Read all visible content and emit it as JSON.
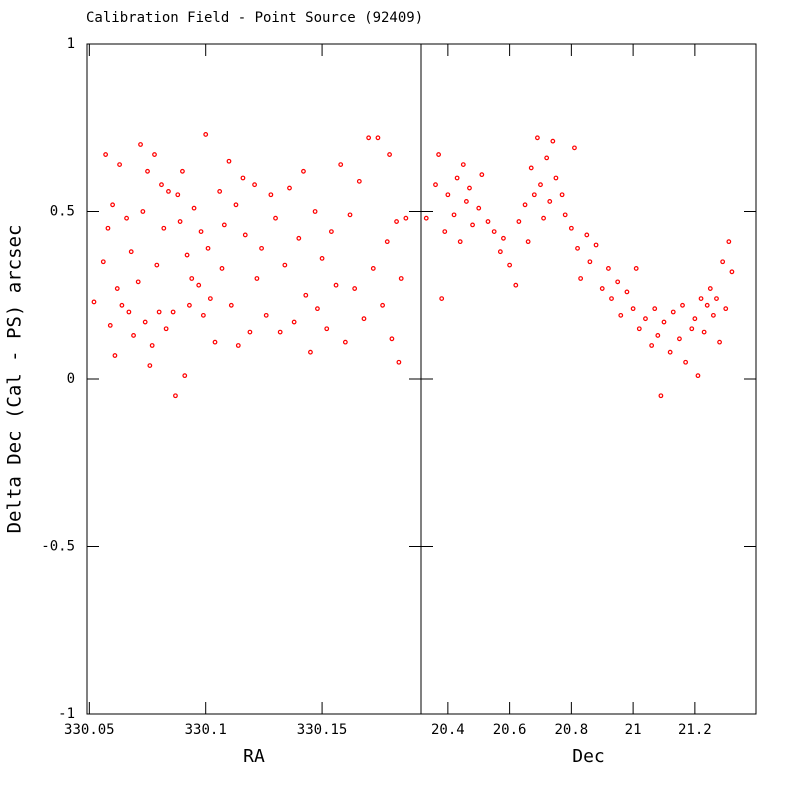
{
  "chart_data": [
    {
      "type": "scatter",
      "title": "Calibration Field - Point Source (92409)",
      "ylabel": "Delta Dec (Cal - PS) arcsec",
      "xlabel": "RA",
      "color": "#ff0000",
      "xlim": [
        330.049,
        330.1925
      ],
      "xticks": [
        330.05,
        330.1,
        330.15
      ],
      "ylim": [
        -1,
        1
      ],
      "yticks": [
        -1,
        -0.5,
        0,
        0.5,
        1
      ],
      "x": [
        330.052,
        330.056,
        330.057,
        330.058,
        330.059,
        330.06,
        330.061,
        330.062,
        330.063,
        330.064,
        330.066,
        330.067,
        330.068,
        330.069,
        330.071,
        330.072,
        330.073,
        330.074,
        330.075,
        330.076,
        330.077,
        330.078,
        330.079,
        330.08,
        330.081,
        330.082,
        330.083,
        330.084,
        330.086,
        330.087,
        330.088,
        330.089,
        330.09,
        330.091,
        330.092,
        330.093,
        330.094,
        330.095,
        330.097,
        330.098,
        330.099,
        330.1,
        330.101,
        330.102,
        330.104,
        330.106,
        330.107,
        330.108,
        330.11,
        330.111,
        330.113,
        330.114,
        330.116,
        330.117,
        330.119,
        330.121,
        330.122,
        330.124,
        330.126,
        330.128,
        330.13,
        330.132,
        330.134,
        330.136,
        330.138,
        330.14,
        330.142,
        330.143,
        330.145,
        330.147,
        330.148,
        330.15,
        330.152,
        330.154,
        330.156,
        330.158,
        330.16,
        330.162,
        330.164,
        330.166,
        330.168,
        330.17,
        330.172,
        330.174,
        330.176,
        330.178,
        330.179,
        330.18,
        330.182,
        330.183,
        330.184,
        330.186
      ],
      "values": [
        0.23,
        0.35,
        0.67,
        0.45,
        0.16,
        0.52,
        0.07,
        0.27,
        0.64,
        0.22,
        0.48,
        0.2,
        0.38,
        0.13,
        0.29,
        0.7,
        0.5,
        0.17,
        0.62,
        0.04,
        0.1,
        0.67,
        0.34,
        0.2,
        0.58,
        0.45,
        0.15,
        0.56,
        0.2,
        -0.05,
        0.55,
        0.47,
        0.62,
        0.01,
        0.37,
        0.22,
        0.3,
        0.51,
        0.28,
        0.44,
        0.19,
        0.73,
        0.39,
        0.24,
        0.11,
        0.56,
        0.33,
        0.46,
        0.65,
        0.22,
        0.52,
        0.1,
        0.6,
        0.43,
        0.14,
        0.58,
        0.3,
        0.39,
        0.19,
        0.55,
        0.48,
        0.14,
        0.34,
        0.57,
        0.17,
        0.42,
        0.62,
        0.25,
        0.08,
        0.5,
        0.21,
        0.36,
        0.15,
        0.44,
        0.28,
        0.64,
        0.11,
        0.49,
        0.27,
        0.59,
        0.18,
        0.72,
        0.33,
        0.72,
        0.22,
        0.41,
        0.67,
        0.12,
        0.47,
        0.05,
        0.3,
        0.48
      ]
    },
    {
      "type": "scatter",
      "xlabel": "Dec",
      "color": "#ff0000",
      "xlim": [
        20.313,
        21.398
      ],
      "xticks": [
        20.4,
        20.6,
        20.8,
        21,
        21.2
      ],
      "ylim": [
        -1,
        1
      ],
      "yticks": [
        -1,
        -0.5,
        0,
        0.5,
        1
      ],
      "x": [
        20.33,
        20.36,
        20.37,
        20.38,
        20.39,
        20.4,
        20.42,
        20.43,
        20.44,
        20.45,
        20.46,
        20.47,
        20.48,
        20.5,
        20.51,
        20.53,
        20.55,
        20.57,
        20.58,
        20.6,
        20.62,
        20.63,
        20.65,
        20.66,
        20.67,
        20.68,
        20.69,
        20.7,
        20.71,
        20.72,
        20.73,
        20.74,
        20.75,
        20.77,
        20.78,
        20.8,
        20.81,
        20.82,
        20.83,
        20.85,
        20.86,
        20.88,
        20.9,
        20.92,
        20.93,
        20.95,
        20.96,
        20.98,
        21.0,
        21.01,
        21.02,
        21.04,
        21.06,
        21.07,
        21.08,
        21.09,
        21.1,
        21.12,
        21.13,
        21.15,
        21.16,
        21.17,
        21.19,
        21.2,
        21.21,
        21.22,
        21.23,
        21.24,
        21.25,
        21.26,
        21.27,
        21.28,
        21.29,
        21.3,
        21.31,
        21.32
      ],
      "values": [
        0.48,
        0.58,
        0.67,
        0.24,
        0.44,
        0.55,
        0.49,
        0.6,
        0.41,
        0.64,
        0.53,
        0.57,
        0.46,
        0.51,
        0.61,
        0.47,
        0.44,
        0.38,
        0.42,
        0.34,
        0.28,
        0.47,
        0.52,
        0.41,
        0.63,
        0.55,
        0.72,
        0.58,
        0.48,
        0.66,
        0.53,
        0.71,
        0.6,
        0.55,
        0.49,
        0.45,
        0.69,
        0.39,
        0.3,
        0.43,
        0.35,
        0.4,
        0.27,
        0.33,
        0.24,
        0.29,
        0.19,
        0.26,
        0.21,
        0.33,
        0.15,
        0.18,
        0.1,
        0.21,
        0.13,
        -0.05,
        0.17,
        0.08,
        0.2,
        0.12,
        0.22,
        0.05,
        0.15,
        0.18,
        0.01,
        0.24,
        0.14,
        0.22,
        0.27,
        0.19,
        0.24,
        0.11,
        0.35,
        0.21,
        0.41,
        0.32
      ]
    }
  ]
}
